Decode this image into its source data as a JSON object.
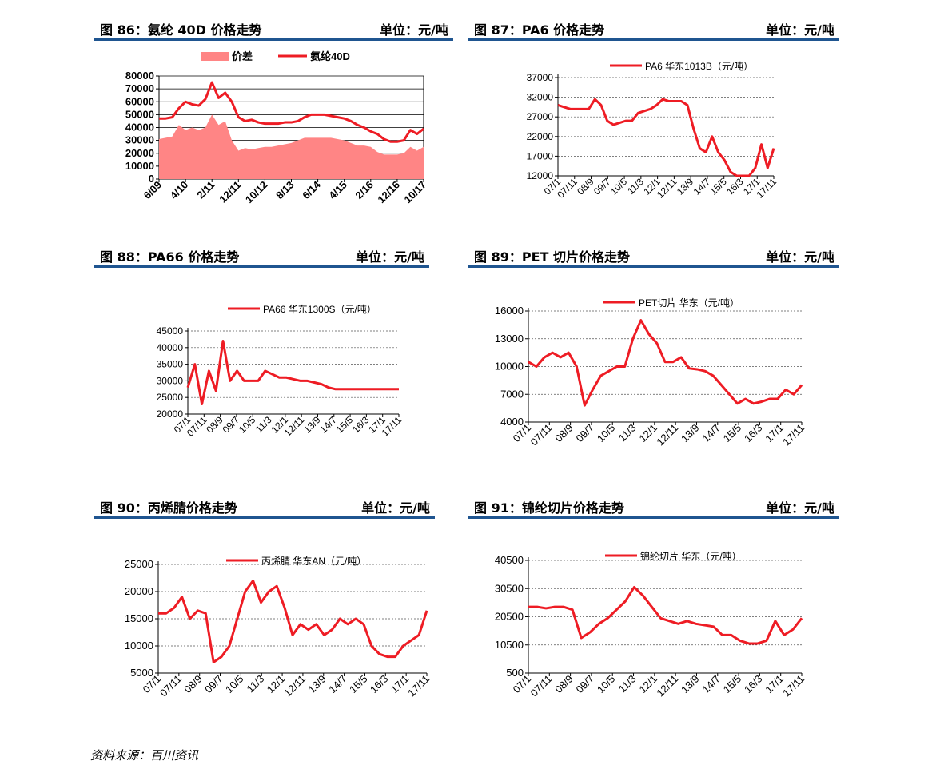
{
  "headers": [
    {
      "title": "图 86：氨纶 40D 价格走势",
      "unit": "单位：元/吨"
    },
    {
      "title": "图 87：PA6 价格走势",
      "unit": "单位：元/吨"
    },
    {
      "title": "图 88：PA66 价格走势",
      "unit": "单位：元/吨"
    },
    {
      "title": "图 89：PET 切片价格走势",
      "unit": "单位：元/吨"
    },
    {
      "title": "图 90：丙烯腈价格走势",
      "unit": "单位：元/吨"
    },
    {
      "title": "图 91：锦纶切片价格走势",
      "unit": "单位：元/吨"
    }
  ],
  "source": "资料来源：百川资讯",
  "colors": {
    "line": "#ee1c24",
    "area": "#ff8585",
    "header_bar": "#1f5590"
  },
  "chart_data": [
    {
      "type": "line",
      "legend": [
        "价差",
        "氨纶40D"
      ],
      "x_ticks": [
        "6/09",
        "4/10",
        "2/11",
        "12/11",
        "10/12",
        "8/13",
        "6/14",
        "4/15",
        "2/16",
        "12/16",
        "10/17"
      ],
      "y_ticks": [
        0,
        10000,
        20000,
        30000,
        40000,
        50000,
        60000,
        70000,
        80000
      ],
      "ylim": [
        0,
        80000
      ],
      "grid": true,
      "series": [
        {
          "name": "氨纶40D",
          "type": "line",
          "values": [
            47000,
            47000,
            48000,
            55000,
            60000,
            58000,
            57000,
            62000,
            75000,
            63000,
            67000,
            60000,
            48000,
            45000,
            46000,
            44000,
            43000,
            43000,
            43000,
            44000,
            44000,
            45000,
            48000,
            50000,
            50000,
            50000,
            49000,
            48000,
            47000,
            45000,
            42000,
            40000,
            37000,
            35000,
            31000,
            29000,
            29000,
            30000,
            38000,
            35000,
            39000
          ]
        },
        {
          "name": "价差",
          "type": "area",
          "values": [
            31000,
            32000,
            33000,
            42000,
            38000,
            40000,
            38000,
            40000,
            50000,
            42000,
            45000,
            30000,
            22000,
            24000,
            23000,
            24000,
            25000,
            25000,
            26000,
            27000,
            28000,
            30000,
            32000,
            32000,
            32000,
            32000,
            32000,
            31000,
            30000,
            28000,
            26000,
            26000,
            25000,
            21000,
            19000,
            19000,
            19000,
            20000,
            25000,
            22000,
            25000
          ]
        }
      ]
    },
    {
      "type": "line",
      "legend": [
        "PA6 华东1013B（元/吨）"
      ],
      "x_ticks": [
        "07/1",
        "07/11",
        "08/9",
        "09/7",
        "10/5",
        "11/3",
        "12/1",
        "12/11",
        "13/9",
        "14/7",
        "15/5",
        "16/3",
        "17/1",
        "17/11"
      ],
      "y_ticks": [
        12000,
        17000,
        22000,
        27000,
        32000,
        37000
      ],
      "ylim": [
        12000,
        37000
      ],
      "grid": true,
      "series": [
        {
          "name": "PA6 华东1013B（元/吨）",
          "values": [
            30000,
            29500,
            29000,
            29000,
            29000,
            29000,
            31500,
            30000,
            26000,
            25000,
            25500,
            26000,
            26000,
            28000,
            28500,
            29000,
            30000,
            31500,
            31000,
            31000,
            31000,
            30000,
            24000,
            19000,
            18000,
            22000,
            18000,
            16000,
            13000,
            12000,
            12000,
            12000,
            14000,
            20000,
            14000,
            19000
          ]
        }
      ]
    },
    {
      "type": "line",
      "legend": [
        "PA66 华东1300S（元/吨）"
      ],
      "x_ticks": [
        "07/1",
        "07/11",
        "08/9",
        "09/7",
        "10/5",
        "11/3",
        "12/1",
        "12/11",
        "13/9",
        "14/7",
        "15/5",
        "16/3",
        "17/1",
        "17/11"
      ],
      "y_ticks": [
        20000,
        25000,
        30000,
        35000,
        40000,
        45000
      ],
      "ylim": [
        20000,
        45000
      ],
      "grid": true,
      "series": [
        {
          "name": "PA66 华东1300S（元/吨）",
          "values": [
            28000,
            35000,
            23000,
            33000,
            27000,
            42000,
            30000,
            33000,
            30000,
            30000,
            30000,
            33000,
            32000,
            31000,
            31000,
            30500,
            30000,
            30000,
            29500,
            29000,
            28000,
            27500,
            27500,
            27500,
            27500,
            27500,
            27500,
            27500,
            27500,
            27500,
            27500
          ]
        }
      ]
    },
    {
      "type": "line",
      "legend": [
        "PET切片 华东（元/吨）"
      ],
      "x_ticks": [
        "07/1",
        "07/11",
        "08/9",
        "09/7",
        "10/5",
        "11/3",
        "12/1",
        "12/11",
        "13/9",
        "14/7",
        "15/5",
        "16/3",
        "17/1",
        "17/11"
      ],
      "y_ticks": [
        4000,
        7000,
        10000,
        13000,
        16000
      ],
      "ylim": [
        4000,
        16000
      ],
      "grid": true,
      "series": [
        {
          "name": "PET切片 华东（元/吨）",
          "values": [
            10500,
            10000,
            11000,
            11500,
            11000,
            11500,
            10000,
            5800,
            7500,
            9000,
            9500,
            10000,
            10000,
            13000,
            15000,
            13500,
            12500,
            10500,
            10500,
            11000,
            9800,
            9700,
            9500,
            9000,
            8000,
            7000,
            6000,
            6500,
            6000,
            6200,
            6500,
            6500,
            7500,
            7000,
            8000
          ]
        }
      ]
    },
    {
      "type": "line",
      "legend": [
        "丙烯腈 华东AN（元/吨）"
      ],
      "x_ticks": [
        "07/1",
        "07/11",
        "08/9",
        "09/7",
        "10/5",
        "11/3",
        "12/1",
        "12/11",
        "13/9",
        "14/7",
        "15/5",
        "16/3",
        "17/1",
        "17/11"
      ],
      "y_ticks": [
        5000,
        10000,
        15000,
        20000,
        25000
      ],
      "ylim": [
        5000,
        25000
      ],
      "grid": true,
      "series": [
        {
          "name": "丙烯腈 华东AN（元/吨）",
          "values": [
            16000,
            16000,
            17000,
            19000,
            15000,
            16500,
            16000,
            7000,
            8000,
            10000,
            15000,
            20000,
            22000,
            18000,
            20000,
            21000,
            17000,
            12000,
            14000,
            13000,
            14000,
            12000,
            13000,
            15000,
            14000,
            15000,
            14000,
            10000,
            8500,
            8000,
            8000,
            10000,
            11000,
            12000,
            16500
          ]
        }
      ]
    },
    {
      "type": "line",
      "legend": [
        "锦纶切片 华东（元/吨）"
      ],
      "x_ticks": [
        "07/1",
        "07/11",
        "08/9",
        "09/7",
        "10/5",
        "11/3",
        "12/1",
        "12/11",
        "13/9",
        "14/7",
        "15/5",
        "16/3",
        "17/1",
        "17/11"
      ],
      "y_ticks": [
        500,
        10500,
        20500,
        30500,
        40500
      ],
      "ylim": [
        500,
        40500
      ],
      "grid": true,
      "series": [
        {
          "name": "锦纶切片 华东（元/吨）",
          "values": [
            24000,
            24000,
            23500,
            24000,
            24000,
            23000,
            13000,
            15000,
            18000,
            20000,
            23000,
            26000,
            31000,
            28000,
            24000,
            20000,
            19000,
            18000,
            19000,
            18000,
            17500,
            17000,
            14000,
            14000,
            12000,
            11000,
            11000,
            12000,
            19000,
            14000,
            16000,
            20000
          ]
        }
      ]
    }
  ]
}
